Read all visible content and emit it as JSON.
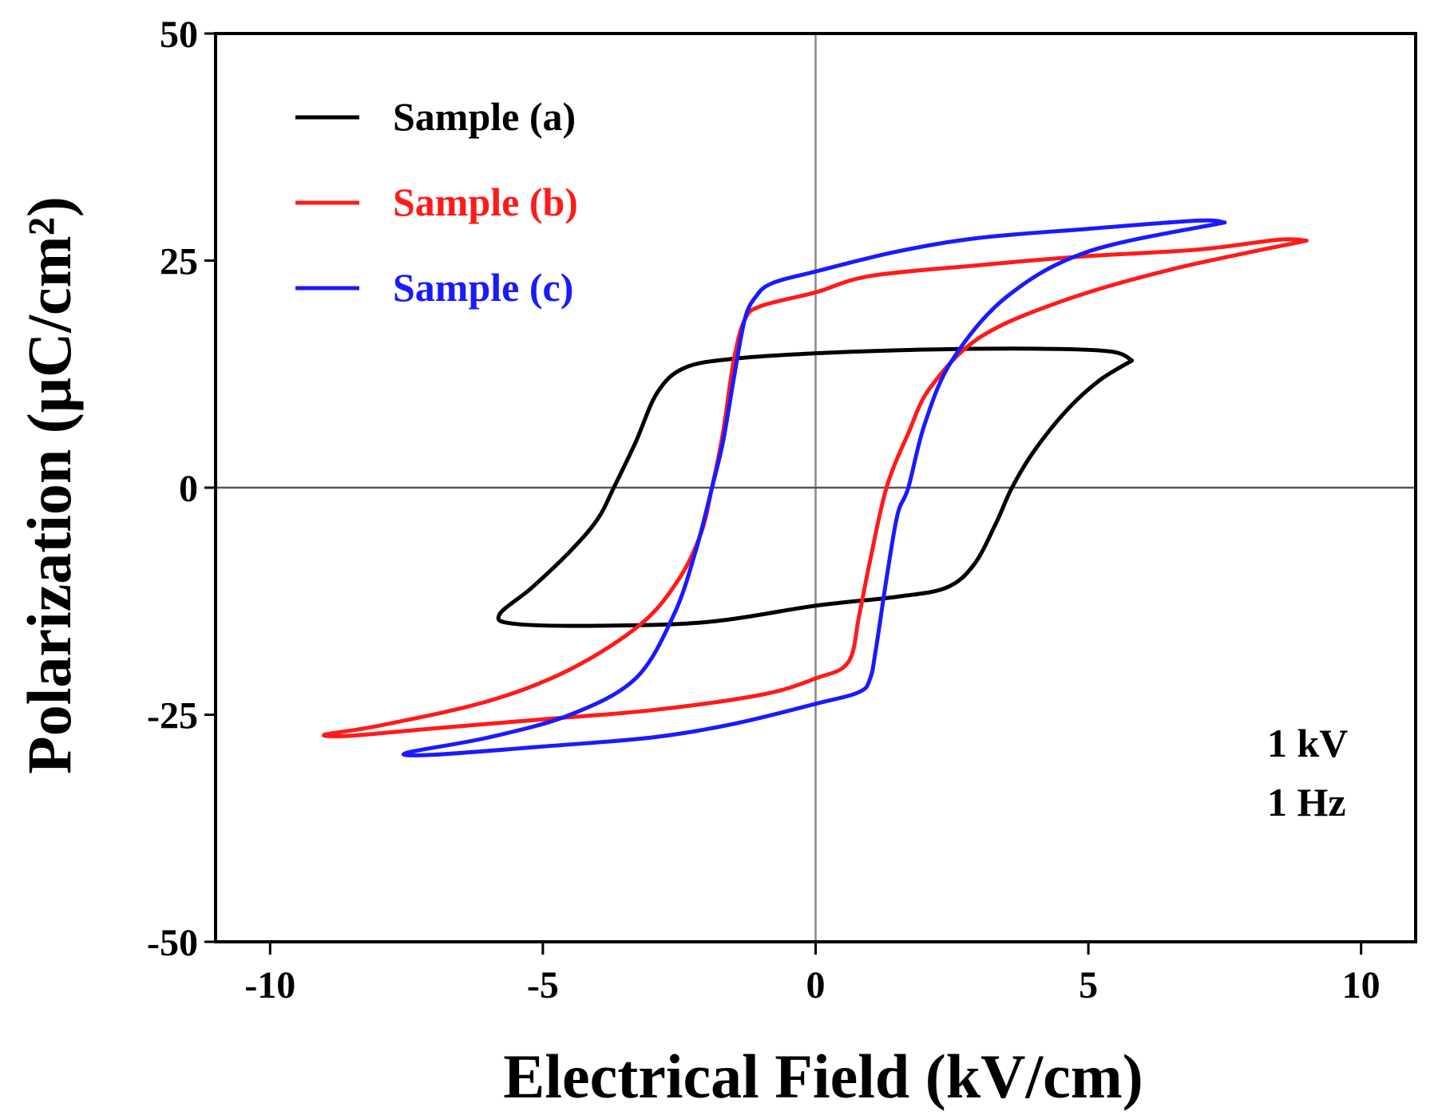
{
  "chart_data": {
    "type": "line",
    "title": "",
    "xlabel": "Electrical Field (kV/cm)",
    "ylabel": "Polarization (μC/cm²)",
    "ylabel_color": "#000000",
    "xlim": [
      -11,
      11
    ],
    "ylim": [
      -50,
      50
    ],
    "xticks": [
      -10,
      -5,
      0,
      5,
      10
    ],
    "yticks": [
      -50,
      -25,
      0,
      25,
      50
    ],
    "xtick_labels": [
      "-10",
      "-5",
      "0",
      "5",
      "10"
    ],
    "ytick_labels": [
      "-50",
      "-25",
      "0",
      "25",
      "50"
    ],
    "grid": false,
    "zero_lines": true,
    "legend_position": "top-left",
    "annotation_lines": [
      "1 kV",
      "1 Hz"
    ],
    "series": [
      {
        "name": "Sample (a)",
        "color": "#000000",
        "points": [
          [
            5.8,
            14.0
          ],
          [
            5.4,
            15.0
          ],
          [
            4.0,
            15.3
          ],
          [
            2.0,
            15.2
          ],
          [
            0.0,
            14.8
          ],
          [
            -1.5,
            14.2
          ],
          [
            -2.4,
            13.2
          ],
          [
            -2.9,
            10.5
          ],
          [
            -3.3,
            5.0
          ],
          [
            -3.7,
            0.0
          ],
          [
            -4.0,
            -3.5
          ],
          [
            -4.5,
            -7.0
          ],
          [
            -5.2,
            -11.0
          ],
          [
            -5.8,
            -14.0
          ],
          [
            -5.5,
            -15.0
          ],
          [
            -4.0,
            -15.2
          ],
          [
            -2.0,
            -14.8
          ],
          [
            0.0,
            -13.0
          ],
          [
            1.5,
            -12.0
          ],
          [
            2.4,
            -11.0
          ],
          [
            2.9,
            -8.5
          ],
          [
            3.3,
            -4.0
          ],
          [
            3.6,
            0.0
          ],
          [
            4.0,
            4.0
          ],
          [
            4.6,
            8.5
          ],
          [
            5.2,
            11.8
          ],
          [
            5.8,
            14.0
          ]
        ]
      },
      {
        "name": "Sample (b)",
        "color": "#ff1a1a",
        "points": [
          [
            9.0,
            27.2
          ],
          [
            8.5,
            27.3
          ],
          [
            7.0,
            26.2
          ],
          [
            5.0,
            25.5
          ],
          [
            3.0,
            24.5
          ],
          [
            1.0,
            23.3
          ],
          [
            0.0,
            21.5
          ],
          [
            -1.0,
            20.0
          ],
          [
            -1.3,
            18.5
          ],
          [
            -1.5,
            14.0
          ],
          [
            -1.7,
            6.0
          ],
          [
            -1.9,
            0.0
          ],
          [
            -2.1,
            -5.0
          ],
          [
            -2.5,
            -10.0
          ],
          [
            -3.2,
            -15.0
          ],
          [
            -4.5,
            -20.0
          ],
          [
            -6.0,
            -23.5
          ],
          [
            -8.0,
            -26.2
          ],
          [
            -9.0,
            -27.2
          ],
          [
            -8.5,
            -27.3
          ],
          [
            -7.0,
            -26.5
          ],
          [
            -5.0,
            -25.5
          ],
          [
            -3.0,
            -24.5
          ],
          [
            -1.0,
            -22.8
          ],
          [
            0.0,
            -21.0
          ],
          [
            0.6,
            -19.2
          ],
          [
            0.8,
            -14.0
          ],
          [
            1.0,
            -8.0
          ],
          [
            1.3,
            0.0
          ],
          [
            1.7,
            6.0
          ],
          [
            2.1,
            11.0
          ],
          [
            3.0,
            16.5
          ],
          [
            4.5,
            20.5
          ],
          [
            6.5,
            24.0
          ],
          [
            9.0,
            27.2
          ]
        ]
      },
      {
        "name": "Sample (c)",
        "color": "#1a1aff",
        "points": [
          [
            7.5,
            29.2
          ],
          [
            7.0,
            29.4
          ],
          [
            5.0,
            28.5
          ],
          [
            3.0,
            27.5
          ],
          [
            1.5,
            26.0
          ],
          [
            0.0,
            23.8
          ],
          [
            -0.8,
            22.5
          ],
          [
            -1.1,
            21.0
          ],
          [
            -1.3,
            18.5
          ],
          [
            -1.5,
            12.0
          ],
          [
            -1.7,
            5.0
          ],
          [
            -1.9,
            0.0
          ],
          [
            -2.2,
            -7.0
          ],
          [
            -2.6,
            -14.0
          ],
          [
            -3.3,
            -21.0
          ],
          [
            -4.5,
            -25.0
          ],
          [
            -6.0,
            -27.5
          ],
          [
            -7.5,
            -29.2
          ],
          [
            -7.0,
            -29.4
          ],
          [
            -5.0,
            -28.5
          ],
          [
            -3.0,
            -27.5
          ],
          [
            -1.5,
            -26.0
          ],
          [
            0.0,
            -23.8
          ],
          [
            0.8,
            -22.5
          ],
          [
            1.0,
            -21.0
          ],
          [
            1.1,
            -18.0
          ],
          [
            1.3,
            -10.0
          ],
          [
            1.5,
            -3.0
          ],
          [
            1.7,
            0.0
          ],
          [
            2.0,
            7.0
          ],
          [
            2.5,
            14.0
          ],
          [
            3.5,
            21.0
          ],
          [
            5.0,
            26.0
          ],
          [
            7.5,
            29.2
          ]
        ]
      }
    ]
  }
}
